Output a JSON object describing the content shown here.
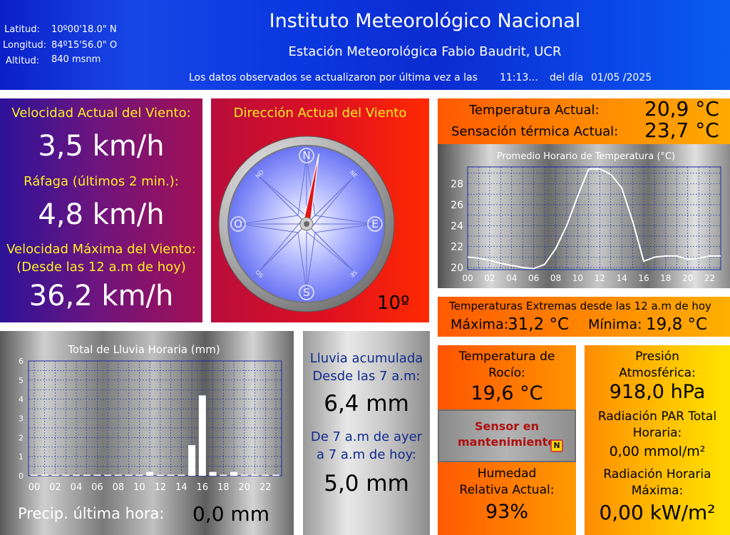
{
  "header": {
    "latitud_label": "Latitud:",
    "latitud_value": "10º00'18.0\" N",
    "longitud_label": "Longitud:",
    "longitud_value": "84º15'56.0\" O",
    "altitud_label": "Altitud:",
    "altitud_value": "840 msnm",
    "title": "Instituto Meteorológico Nacional",
    "subtitle": "Estación Meteorológica Fabio Baudrit, UCR",
    "update_text": "Los datos observados se actualizaron por última vez a las",
    "update_time": "11:13...",
    "update_day_label": "del día",
    "update_date": "01/05 /2025"
  },
  "wind": {
    "speed_label": "Velocidad Actual del Viento:",
    "speed_value": "3,5 km/h",
    "gust_label": "Ráfaga (últimos 2 min.):",
    "gust_value": "4,8 km/h",
    "max_label_1": "Velocidad Máxima del Viento:",
    "max_label_2": "(Desde las 12 a.m de hoy)",
    "max_value": "36,2 km/h",
    "direction_label": "Dirección Actual del Viento",
    "direction_value": "10º",
    "direction_degrees": 10,
    "compass": {
      "n": "N",
      "s": "S",
      "e": "E",
      "o": "O",
      "no": "NO",
      "ne": "NE",
      "so": "SO",
      "se": "SE"
    }
  },
  "temperature": {
    "current_label": "Temperatura Actual:",
    "current_value": "20,9 °C",
    "feels_label": "Sensación térmica Actual:",
    "feels_value": "23,7 °C",
    "extremes_label": "Temperaturas Extremas desde las 12 a.m de hoy",
    "max_label": "Máxima:",
    "max_value": "31,2 °C",
    "min_label": "Mínima:",
    "min_value": "19,8 °C"
  },
  "rain": {
    "accumulated_label_1": "Lluvia acumulada",
    "accumulated_label_2": "Desde las 7 a.m:",
    "accumulated_value": "6,4 mm",
    "yesterday_label_1": "De 7 a.m de ayer",
    "yesterday_label_2": "a 7 a.m de hoy:",
    "yesterday_value": "5,0 mm",
    "last_hour_label": "Precip. última hora:",
    "last_hour_value": "0,0 mm"
  },
  "dew": {
    "label_1": "Temperatura de",
    "label_2": "Rocío:",
    "value": "19,6 °C"
  },
  "sensor": {
    "line_1": "Sensor en",
    "line_2": "mantenimiento",
    "badge": "N"
  },
  "humidity": {
    "label_1": "Humedad",
    "label_2": "Relativa Actual:",
    "value": "93%"
  },
  "pressure": {
    "label_1": "Presión",
    "label_2": "Atmosférica:",
    "value": "918,0 hPa",
    "par_label_1": "Radiación PAR Total",
    "par_label_2": "Horaria:",
    "par_value": "0,00 mmol/m²",
    "rad_label_1": "Radiación Horaria",
    "rad_label_2": "Máxima:",
    "rad_value": "0,00 kW/m²"
  },
  "colors": {
    "grid_line": "#1a2aa0",
    "temp_line": "#ffffff",
    "rain_bar": "#ffffff",
    "needle_red": "#e01818",
    "compass_face": "#7a86ff"
  },
  "chart_data": [
    {
      "type": "line",
      "title": "Promedio Horario de Temperatura (°C)",
      "x": [
        0,
        1,
        2,
        3,
        4,
        5,
        6,
        7,
        8,
        9,
        10,
        11,
        12,
        13,
        14,
        15,
        16,
        17,
        18,
        19,
        20,
        21,
        22,
        23
      ],
      "x_tick_labels": [
        "00",
        "02",
        "04",
        "06",
        "08",
        "10",
        "12",
        "14",
        "16",
        "18",
        "20",
        "22"
      ],
      "series": [
        {
          "values": [
            21.0,
            20.9,
            20.7,
            20.4,
            20.2,
            20.0,
            19.9,
            20.3,
            21.8,
            24.0,
            26.8,
            29.4,
            29.4,
            28.9,
            27.6,
            24.4,
            20.6,
            21.0,
            21.1,
            21.1,
            20.8,
            20.9,
            21.1,
            21.1
          ]
        }
      ],
      "ylim": [
        19.8,
        29.6
      ],
      "y_ticks": [
        20,
        22,
        24,
        26,
        28
      ],
      "grid": true
    },
    {
      "type": "bar",
      "title": "Total de Lluvia Horaria (mm)",
      "categories": [
        0,
        1,
        2,
        3,
        4,
        5,
        6,
        7,
        8,
        9,
        10,
        11,
        12,
        13,
        14,
        15,
        16,
        17,
        18,
        19,
        20,
        21,
        22,
        23
      ],
      "x_tick_labels": [
        "00",
        "02",
        "04",
        "06",
        "08",
        "10",
        "12",
        "14",
        "16",
        "18",
        "20",
        "22"
      ],
      "values": [
        0,
        0,
        0,
        0,
        0,
        0,
        0,
        0,
        0,
        0,
        0,
        0.2,
        0,
        0,
        0,
        1.6,
        4.2,
        0.2,
        0,
        0.2,
        0,
        0,
        0,
        0
      ],
      "ylim": [
        0,
        6
      ],
      "y_ticks": [
        0,
        1,
        2,
        3,
        4,
        5,
        6
      ],
      "grid": true
    }
  ]
}
